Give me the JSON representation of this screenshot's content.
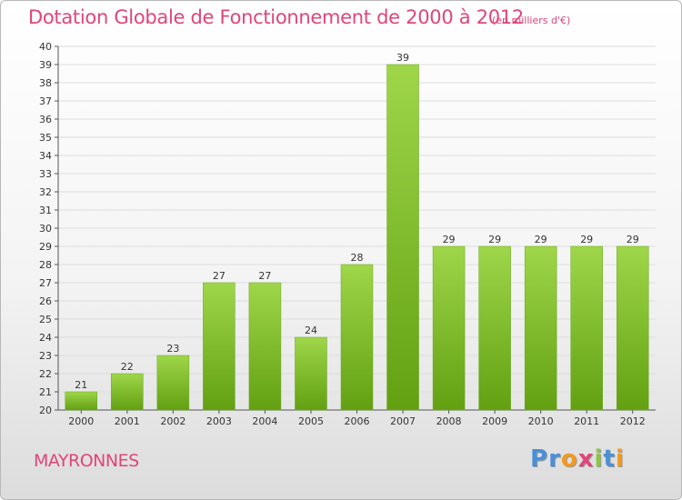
{
  "header": {
    "title": "Dotation Globale de Fonctionnement de 2000 à 2012",
    "subtitle": "(en milliers d'€)"
  },
  "footer": {
    "town": "MAYRONNES",
    "logo": {
      "text": "Proxiti",
      "letters": [
        {
          "char": "P",
          "color": "#4a90d9"
        },
        {
          "char": "r",
          "color": "#4a90d9"
        },
        {
          "char": "o",
          "color": "#f29a1f"
        },
        {
          "char": "x",
          "color": "#e0457a"
        },
        {
          "char": "i",
          "color": "#8dc63f"
        },
        {
          "char": "t",
          "color": "#4a90d9"
        },
        {
          "char": "i",
          "color": "#f29a1f"
        }
      ]
    }
  },
  "colors": {
    "accent": "#e0457a",
    "bar_light": "#9fd64a",
    "bar_dark": "#62a012",
    "grid": "#dddddd"
  },
  "chart_data": {
    "type": "bar",
    "title": "Dotation Globale de Fonctionnement de 2000 à 2012",
    "subtitle": "(en milliers d'€)",
    "xlabel": "",
    "ylabel": "",
    "categories": [
      "2000",
      "2001",
      "2002",
      "2003",
      "2004",
      "2005",
      "2006",
      "2007",
      "2008",
      "2009",
      "2010",
      "2011",
      "2012"
    ],
    "values": [
      21,
      22,
      23,
      27,
      27,
      24,
      28,
      39,
      29,
      29,
      29,
      29,
      29
    ],
    "ylim": [
      20,
      40
    ],
    "yticks": [
      20,
      21,
      22,
      23,
      24,
      25,
      26,
      27,
      28,
      29,
      30,
      31,
      32,
      33,
      34,
      35,
      36,
      37,
      38,
      39,
      40
    ],
    "grid": true,
    "legend": "none"
  }
}
